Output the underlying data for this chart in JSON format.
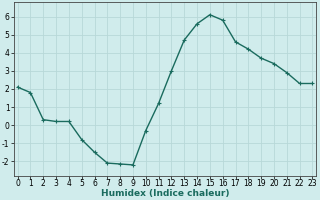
{
  "x": [
    0,
    1,
    2,
    3,
    4,
    5,
    6,
    7,
    8,
    9,
    10,
    11,
    12,
    13,
    14,
    15,
    16,
    17,
    18,
    19,
    20,
    21,
    22,
    23
  ],
  "y": [
    2.1,
    1.8,
    0.3,
    0.2,
    0.2,
    -0.8,
    -1.5,
    -2.1,
    -2.15,
    -2.2,
    -0.3,
    1.2,
    3.0,
    4.7,
    5.6,
    6.1,
    5.8,
    4.6,
    4.2,
    3.7,
    3.4,
    2.9,
    2.3,
    2.3
  ],
  "line_color": "#1a6b5e",
  "marker": "+",
  "background_color": "#d0ecec",
  "grid_color": "#b8d8d8",
  "xlabel": "Humidex (Indice chaleur)",
  "ylim": [
    -2.8,
    6.8
  ],
  "xlim": [
    -0.3,
    23.3
  ],
  "yticks": [
    -2,
    -1,
    0,
    1,
    2,
    3,
    4,
    5,
    6
  ],
  "xticks": [
    0,
    1,
    2,
    3,
    4,
    5,
    6,
    7,
    8,
    9,
    10,
    11,
    12,
    13,
    14,
    15,
    16,
    17,
    18,
    19,
    20,
    21,
    22,
    23
  ],
  "axis_fontsize": 6.5,
  "tick_fontsize": 5.5,
  "linewidth": 1.0,
  "markersize": 3,
  "markeredgewidth": 0.8
}
